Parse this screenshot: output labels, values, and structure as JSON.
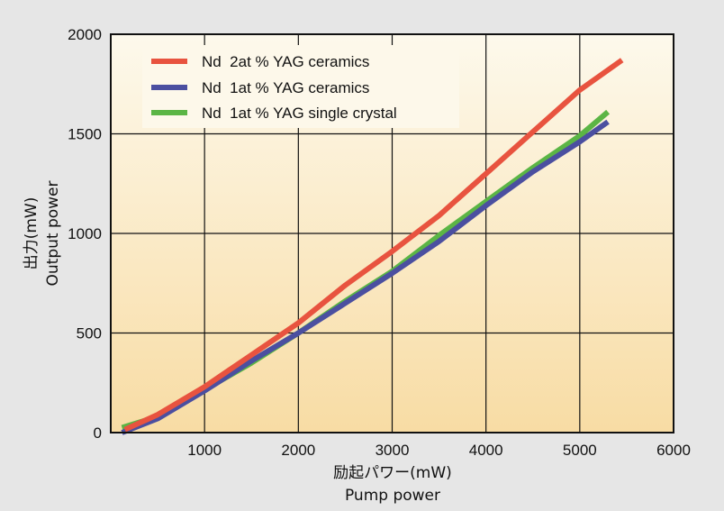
{
  "chart_data": {
    "type": "line",
    "xlabel": "励起パワー(mW)",
    "xlabel2": "Pump power",
    "ylabel": "出力(mW)",
    "ylabel2": "Output power",
    "xlim": [
      0,
      6000
    ],
    "ylim": [
      0,
      2000
    ],
    "xticks": [
      1000,
      2000,
      3000,
      4000,
      5000,
      6000
    ],
    "yticks": [
      0,
      500,
      1000,
      1500,
      2000
    ],
    "grid": true,
    "legend_position": "top-left",
    "background_gradient": [
      "#fdf9ec",
      "#f8dca4"
    ],
    "series": [
      {
        "name": "Nd  2at % YAG ceramics",
        "color": "#e8533f",
        "x": [
          150,
          500,
          1000,
          1500,
          2000,
          2500,
          3000,
          3500,
          4000,
          4500,
          5000,
          5450
        ],
        "y": [
          15,
          90,
          230,
          390,
          550,
          740,
          910,
          1090,
          1300,
          1510,
          1720,
          1870
        ]
      },
      {
        "name": "Nd  1at % YAG ceramics",
        "color": "#4b4fa0",
        "x": [
          120,
          500,
          1000,
          1500,
          2000,
          2500,
          3000,
          3500,
          4000,
          4500,
          5000,
          5300
        ],
        "y": [
          0,
          70,
          210,
          360,
          500,
          650,
          800,
          960,
          1140,
          1310,
          1460,
          1560
        ]
      },
      {
        "name": "Nd  1at % YAG single crystal",
        "color": "#5bb545",
        "x": [
          120,
          500,
          1000,
          1500,
          2000,
          2500,
          3000,
          3500,
          4000,
          4500,
          5000,
          5300
        ],
        "y": [
          25,
          80,
          215,
          350,
          500,
          660,
          810,
          990,
          1160,
          1330,
          1490,
          1610
        ]
      }
    ]
  }
}
